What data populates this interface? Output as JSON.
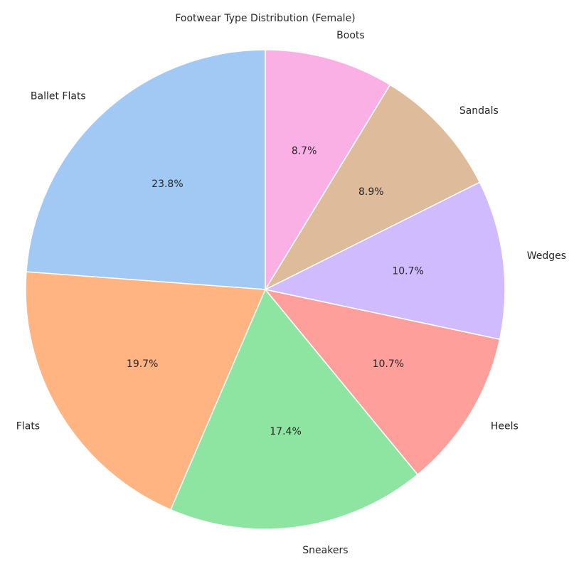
{
  "chart_data": {
    "type": "pie",
    "title": "Footwear Type Distribution (Female)",
    "slices": [
      {
        "label": "Ballet Flats",
        "value": 23.8,
        "pct_text": "23.8%",
        "color": "#a1c9f4"
      },
      {
        "label": "Flats",
        "value": 19.7,
        "pct_text": "19.7%",
        "color": "#ffb482"
      },
      {
        "label": "Sneakers",
        "value": 17.4,
        "pct_text": "17.4%",
        "color": "#8de5a1"
      },
      {
        "label": "Heels",
        "value": 10.7,
        "pct_text": "10.7%",
        "color": "#ff9f9b"
      },
      {
        "label": "Wedges",
        "value": 10.7,
        "pct_text": "10.7%",
        "color": "#d0bbff"
      },
      {
        "label": "Sandals",
        "value": 8.9,
        "pct_text": "8.9%",
        "color": "#debb9b"
      },
      {
        "label": "Boots",
        "value": 8.7,
        "pct_text": "8.7%",
        "color": "#fab0e4"
      }
    ],
    "start_angle_deg": 90,
    "direction": "counterclockwise",
    "legend": "none"
  }
}
